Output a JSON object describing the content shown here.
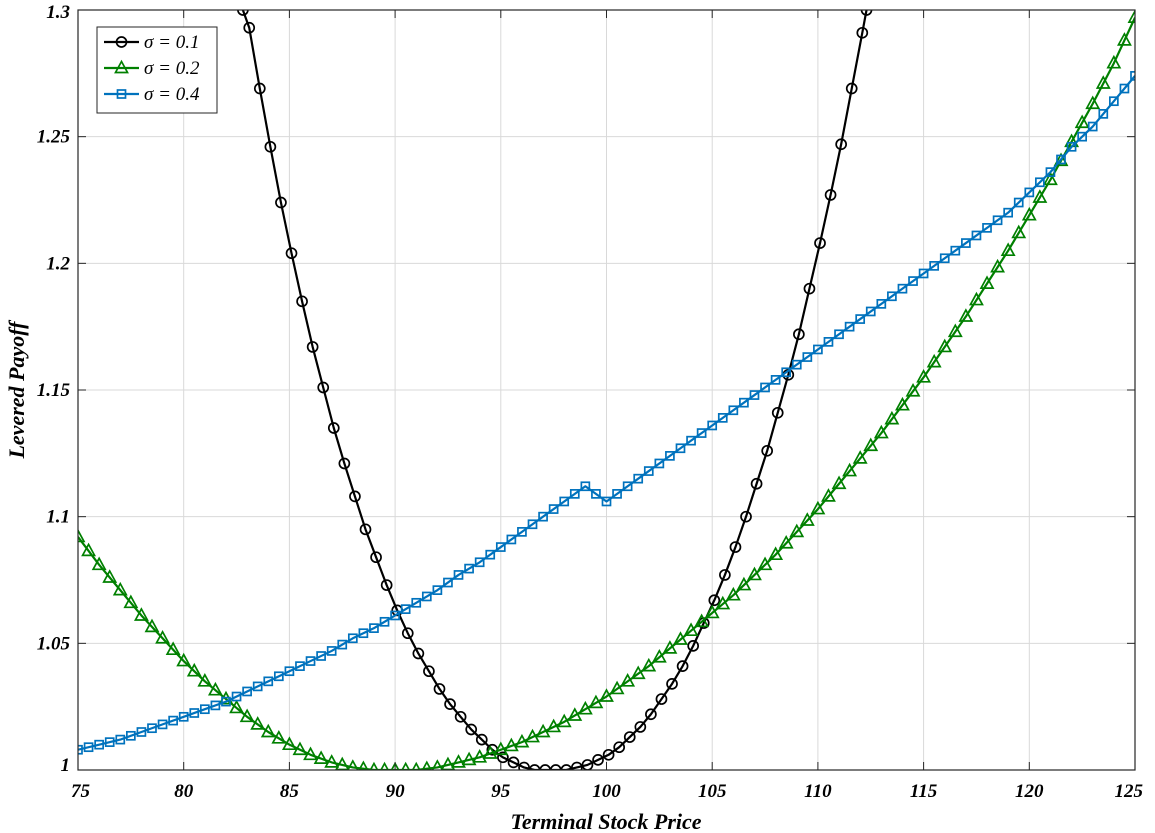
{
  "chart_data": {
    "type": "line",
    "title": "",
    "xlabel": "Terminal Stock Price",
    "ylabel": "Levered Payoff",
    "xlim": [
      75,
      125
    ],
    "ylim": [
      1,
      1.3
    ],
    "xticks": [
      75,
      80,
      85,
      90,
      95,
      100,
      105,
      110,
      115,
      120,
      125
    ],
    "yticks": [
      1,
      1.05,
      1.1,
      1.15,
      1.2,
      1.25,
      1.3
    ],
    "ytick_labels": [
      "1",
      "1.05",
      "1.1",
      "1.15",
      "1.2",
      "1.25",
      "1.3"
    ],
    "grid": true,
    "legend_position": "top-left",
    "series": [
      {
        "name": "σ = 0.1",
        "marker": "circle",
        "color": "#000000",
        "min_x": 97.5,
        "points": [
          [
            82.8,
            1.3
          ],
          [
            83.1,
            1.293
          ],
          [
            83.6,
            1.269
          ],
          [
            84.1,
            1.246
          ],
          [
            84.6,
            1.224
          ],
          [
            85.1,
            1.204
          ],
          [
            85.6,
            1.185
          ],
          [
            86.1,
            1.167
          ],
          [
            86.6,
            1.151
          ],
          [
            87.1,
            1.135
          ],
          [
            87.6,
            1.121
          ],
          [
            88.1,
            1.108
          ],
          [
            88.6,
            1.095
          ],
          [
            89.1,
            1.084
          ],
          [
            89.6,
            1.073
          ],
          [
            90.1,
            1.063
          ],
          [
            90.6,
            1.054
          ],
          [
            91.1,
            1.046
          ],
          [
            91.6,
            1.039
          ],
          [
            92.1,
            1.032
          ],
          [
            92.6,
            1.026
          ],
          [
            93.1,
            1.021
          ],
          [
            93.6,
            1.016
          ],
          [
            94.1,
            1.012
          ],
          [
            94.6,
            1.008
          ],
          [
            95.1,
            1.005
          ],
          [
            95.6,
            1.003
          ],
          [
            96.1,
            1.001
          ],
          [
            96.6,
            1.0
          ],
          [
            97.1,
            1.0
          ],
          [
            97.6,
            1.0
          ],
          [
            98.1,
            1.0
          ],
          [
            98.6,
            1.001
          ],
          [
            99.1,
            1.002
          ],
          [
            99.6,
            1.004
          ],
          [
            100.1,
            1.006
          ],
          [
            100.6,
            1.009
          ],
          [
            101.1,
            1.013
          ],
          [
            101.6,
            1.017
          ],
          [
            102.1,
            1.022
          ],
          [
            102.6,
            1.028
          ],
          [
            103.1,
            1.034
          ],
          [
            103.6,
            1.041
          ],
          [
            104.1,
            1.049
          ],
          [
            104.6,
            1.058
          ],
          [
            105.1,
            1.067
          ],
          [
            105.6,
            1.077
          ],
          [
            106.1,
            1.088
          ],
          [
            106.6,
            1.1
          ],
          [
            107.1,
            1.113
          ],
          [
            107.6,
            1.126
          ],
          [
            108.1,
            1.141
          ],
          [
            108.6,
            1.156
          ],
          [
            109.1,
            1.172
          ],
          [
            109.6,
            1.19
          ],
          [
            110.1,
            1.208
          ],
          [
            110.6,
            1.227
          ],
          [
            111.1,
            1.247
          ],
          [
            111.6,
            1.269
          ],
          [
            112.1,
            1.291
          ],
          [
            112.3,
            1.3
          ]
        ]
      },
      {
        "name": "σ = 0.2",
        "marker": "triangle",
        "color": "#008000",
        "points": [
          [
            75.0,
            1.092
          ],
          [
            76.0,
            1.081
          ],
          [
            77.0,
            1.071
          ],
          [
            78.0,
            1.061
          ],
          [
            79.0,
            1.052
          ],
          [
            80.0,
            1.043
          ],
          [
            81.0,
            1.035
          ],
          [
            82.0,
            1.028
          ],
          [
            83.0,
            1.021
          ],
          [
            84.0,
            1.015
          ],
          [
            85.0,
            1.01
          ],
          [
            86.0,
            1.006
          ],
          [
            87.0,
            1.003
          ],
          [
            88.0,
            1.001
          ],
          [
            89.0,
            1.0
          ],
          [
            90.0,
            1.0
          ],
          [
            91.0,
            1.0
          ],
          [
            92.0,
            1.001
          ],
          [
            93.0,
            1.003
          ],
          [
            94.0,
            1.005
          ],
          [
            95.0,
            1.008
          ],
          [
            96.0,
            1.011
          ],
          [
            97.0,
            1.015
          ],
          [
            98.0,
            1.019
          ],
          [
            99.0,
            1.024
          ],
          [
            100.0,
            1.029
          ],
          [
            101.0,
            1.035
          ],
          [
            102.0,
            1.041
          ],
          [
            103.0,
            1.048
          ],
          [
            104.0,
            1.055
          ],
          [
            105.0,
            1.062
          ],
          [
            106.0,
            1.069
          ],
          [
            107.0,
            1.077
          ],
          [
            108.0,
            1.085
          ],
          [
            109.0,
            1.094
          ],
          [
            110.0,
            1.103
          ],
          [
            111.0,
            1.113
          ],
          [
            112.0,
            1.123
          ],
          [
            113.0,
            1.133
          ],
          [
            114.0,
            1.144
          ],
          [
            115.0,
            1.155
          ],
          [
            116.0,
            1.167
          ],
          [
            117.0,
            1.179
          ],
          [
            118.0,
            1.192
          ],
          [
            119.0,
            1.205
          ],
          [
            120.0,
            1.219
          ],
          [
            121.0,
            1.233
          ],
          [
            122.0,
            1.248
          ],
          [
            123.0,
            1.263
          ],
          [
            124.0,
            1.279
          ],
          [
            125.0,
            1.297
          ]
        ]
      },
      {
        "name": "σ = 0.4",
        "marker": "square",
        "color": "#0072BD",
        "points": [
          [
            75.0,
            1.008
          ],
          [
            76.0,
            1.01
          ],
          [
            77.0,
            1.012
          ],
          [
            78.0,
            1.015
          ],
          [
            79.0,
            1.018
          ],
          [
            80.0,
            1.021
          ],
          [
            81.0,
            1.024
          ],
          [
            82.0,
            1.027
          ],
          [
            83.0,
            1.031
          ],
          [
            84.0,
            1.035
          ],
          [
            85.0,
            1.039
          ],
          [
            86.0,
            1.043
          ],
          [
            87.0,
            1.047
          ],
          [
            88.0,
            1.052
          ],
          [
            89.0,
            1.056
          ],
          [
            90.0,
            1.061
          ],
          [
            91.0,
            1.066
          ],
          [
            92.0,
            1.071
          ],
          [
            93.0,
            1.077
          ],
          [
            94.0,
            1.082
          ],
          [
            95.0,
            1.088
          ],
          [
            96.0,
            1.094
          ],
          [
            97.0,
            1.1
          ],
          [
            98.0,
            1.106
          ],
          [
            99.0,
            1.112
          ],
          [
            100.0,
            1.106
          ],
          [
            101.0,
            1.112
          ],
          [
            102.0,
            1.118
          ],
          [
            103.0,
            1.124
          ],
          [
            104.0,
            1.13
          ],
          [
            105.0,
            1.136
          ],
          [
            106.0,
            1.142
          ],
          [
            107.0,
            1.148
          ],
          [
            108.0,
            1.154
          ],
          [
            109.0,
            1.16
          ],
          [
            110.0,
            1.166
          ],
          [
            111.0,
            1.172
          ],
          [
            112.0,
            1.178
          ],
          [
            113.0,
            1.184
          ],
          [
            114.0,
            1.19
          ],
          [
            115.0,
            1.196
          ],
          [
            116.0,
            1.202
          ],
          [
            117.0,
            1.208
          ],
          [
            118.0,
            1.214
          ],
          [
            119.0,
            1.22
          ],
          [
            120.0,
            1.228
          ],
          [
            121.0,
            1.236
          ],
          [
            122.0,
            1.246
          ],
          [
            123.0,
            1.254
          ],
          [
            124.0,
            1.264
          ],
          [
            125.0,
            1.274
          ]
        ]
      }
    ]
  }
}
